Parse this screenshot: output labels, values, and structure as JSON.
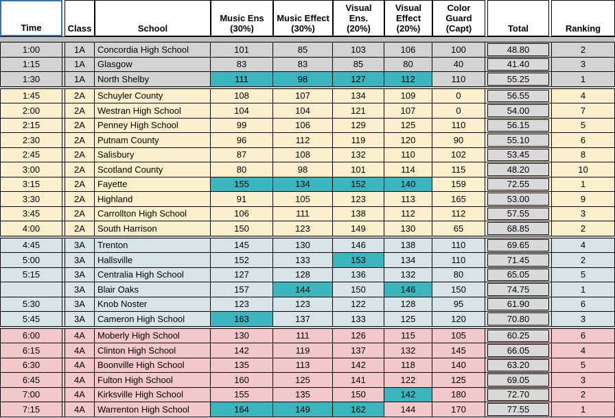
{
  "table": {
    "columns": {
      "time": {
        "label": "Time"
      },
      "class": {
        "label": "Class"
      },
      "school": {
        "label": "School"
      },
      "music_ens": {
        "label": "Music Ens\n(30%)"
      },
      "music_effect": {
        "label": "Music Effect\n(30%)"
      },
      "visual_ens": {
        "label": "Visual\nEns.\n(20%)"
      },
      "visual_effect": {
        "label": "Visual\nEffect\n(20%)"
      },
      "color_guard": {
        "label": "Color\nGuard\n(Capt)"
      },
      "total": {
        "label": "Total"
      },
      "ranking": {
        "label": "Ranking"
      }
    },
    "colors": {
      "highlight_teal": "#3BB6BE",
      "total_fill": "#D9D9D9",
      "header_strip_gray": "#BFBFBF",
      "selected_cell_border_blue": "#2E75B6",
      "grid_black": "#000000"
    },
    "groups": [
      {
        "class": "1A",
        "row_color": "#D3D3D3",
        "rows": [
          {
            "time": "1:00",
            "class": "1A",
            "school": "Concordia High School",
            "music_ens": "101",
            "music_effect": "85",
            "visual_ens": "103",
            "visual_effect": "106",
            "color_guard": "100",
            "total": "48.80",
            "ranking": "2",
            "highlight": []
          },
          {
            "time": "1:15",
            "class": "1A",
            "school": "Glasgow",
            "music_ens": "83",
            "music_effect": "83",
            "visual_ens": "85",
            "visual_effect": "80",
            "color_guard": "40",
            "total": "41.40",
            "ranking": "3",
            "highlight": []
          },
          {
            "time": "1:30",
            "class": "1A",
            "school": "North Shelby",
            "music_ens": "111",
            "music_effect": "98",
            "visual_ens": "127",
            "visual_effect": "112",
            "color_guard": "110",
            "total": "55.25",
            "ranking": "1",
            "highlight": [
              "music_ens",
              "music_effect",
              "visual_ens",
              "visual_effect"
            ]
          }
        ]
      },
      {
        "class": "2A",
        "row_color": "#FBF0CB",
        "rows": [
          {
            "time": "1:45",
            "class": "2A",
            "school": "Schuyler County",
            "music_ens": "108",
            "music_effect": "107",
            "visual_ens": "134",
            "visual_effect": "109",
            "color_guard": "0",
            "total": "56.55",
            "ranking": "4",
            "highlight": []
          },
          {
            "time": "2:00",
            "class": "2A",
            "school": "Westran High School",
            "music_ens": "104",
            "music_effect": "104",
            "visual_ens": "121",
            "visual_effect": "107",
            "color_guard": "0",
            "total": "54.00",
            "ranking": "7",
            "highlight": []
          },
          {
            "time": "2:15",
            "class": "2A",
            "school": "Penney High School",
            "music_ens": "99",
            "music_effect": "106",
            "visual_ens": "129",
            "visual_effect": "125",
            "color_guard": "110",
            "total": "56.15",
            "ranking": "5",
            "highlight": []
          },
          {
            "time": "2:30",
            "class": "2A",
            "school": "Putnam County",
            "music_ens": "96",
            "music_effect": "112",
            "visual_ens": "119",
            "visual_effect": "120",
            "color_guard": "90",
            "total": "55.10",
            "ranking": "6",
            "highlight": []
          },
          {
            "time": "2:45",
            "class": "2A",
            "school": "Salisbury",
            "music_ens": "87",
            "music_effect": "108",
            "visual_ens": "132",
            "visual_effect": "110",
            "color_guard": "102",
            "total": "53.45",
            "ranking": "8",
            "highlight": []
          },
          {
            "time": "3:00",
            "class": "2A",
            "school": "Scotland County",
            "music_ens": "80",
            "music_effect": "98",
            "visual_ens": "101",
            "visual_effect": "114",
            "color_guard": "115",
            "total": "48.20",
            "ranking": "10",
            "highlight": []
          },
          {
            "time": "3:15",
            "class": "2A",
            "school": "Fayette",
            "music_ens": "155",
            "music_effect": "134",
            "visual_ens": "152",
            "visual_effect": "140",
            "color_guard": "159",
            "total": "72.55",
            "ranking": "1",
            "highlight": [
              "music_ens",
              "music_effect",
              "visual_ens",
              "visual_effect"
            ]
          },
          {
            "time": "3:30",
            "class": "2A",
            "school": "Highland",
            "music_ens": "91",
            "music_effect": "105",
            "visual_ens": "123",
            "visual_effect": "113",
            "color_guard": "165",
            "total": "53.00",
            "ranking": "9",
            "highlight": []
          },
          {
            "time": "3:45",
            "class": "2A",
            "school": "Carrollton High School",
            "music_ens": "106",
            "music_effect": "111",
            "visual_ens": "138",
            "visual_effect": "112",
            "color_guard": "112",
            "total": "57.55",
            "ranking": "3",
            "highlight": []
          },
          {
            "time": "4:00",
            "class": "2A",
            "school": "South Harrison",
            "music_ens": "150",
            "music_effect": "123",
            "visual_ens": "149",
            "visual_effect": "130",
            "color_guard": "65",
            "total": "68.85",
            "ranking": "2",
            "highlight": []
          }
        ]
      },
      {
        "class": "3A",
        "row_color": "#D7E4E8",
        "rows": [
          {
            "time": "4:45",
            "class": "3A",
            "school": "Trenton",
            "music_ens": "145",
            "music_effect": "130",
            "visual_ens": "146",
            "visual_effect": "138",
            "color_guard": "110",
            "total": "69.65",
            "ranking": "4",
            "highlight": []
          },
          {
            "time": "5:00",
            "class": "3A",
            "school": "Hallsville",
            "music_ens": "152",
            "music_effect": "133",
            "visual_ens": "153",
            "visual_effect": "134",
            "color_guard": "110",
            "total": "71.45",
            "ranking": "2",
            "highlight": [
              "visual_ens"
            ]
          },
          {
            "time": "5:15",
            "class": "3A",
            "school": "Centralia High School",
            "music_ens": "127",
            "music_effect": "128",
            "visual_ens": "136",
            "visual_effect": "132",
            "color_guard": "80",
            "total": "65.05",
            "ranking": "5",
            "highlight": []
          },
          {
            "time": "",
            "class": "3A",
            "school": "Blair Oaks",
            "music_ens": "157",
            "music_effect": "144",
            "visual_ens": "150",
            "visual_effect": "146",
            "color_guard": "150",
            "total": "74.75",
            "ranking": "1",
            "highlight": [
              "music_effect",
              "visual_effect"
            ]
          },
          {
            "time": "5:30",
            "class": "3A",
            "school": "Knob Noster",
            "music_ens": "123",
            "music_effect": "123",
            "visual_ens": "122",
            "visual_effect": "128",
            "color_guard": "95",
            "total": "61.90",
            "ranking": "6",
            "highlight": []
          },
          {
            "time": "5:45",
            "class": "3A",
            "school": "Cameron High School",
            "music_ens": "163",
            "music_effect": "137",
            "visual_ens": "133",
            "visual_effect": "125",
            "color_guard": "120",
            "total": "70.80",
            "ranking": "3",
            "highlight": [
              "music_ens"
            ]
          }
        ]
      },
      {
        "class": "4A",
        "row_color": "#F4C7C9",
        "rows": [
          {
            "time": "6:00",
            "class": "4A",
            "school": "Moberly High School",
            "music_ens": "130",
            "music_effect": "111",
            "visual_ens": "126",
            "visual_effect": "115",
            "color_guard": "105",
            "total": "60.25",
            "ranking": "6",
            "highlight": []
          },
          {
            "time": "6:15",
            "class": "4A",
            "school": "Clinton High School",
            "music_ens": "142",
            "music_effect": "119",
            "visual_ens": "137",
            "visual_effect": "132",
            "color_guard": "145",
            "total": "66.05",
            "ranking": "4",
            "highlight": []
          },
          {
            "time": "6:30",
            "class": "4A",
            "school": "Boonville High School",
            "music_ens": "135",
            "music_effect": "113",
            "visual_ens": "142",
            "visual_effect": "118",
            "color_guard": "140",
            "total": "63.20",
            "ranking": "5",
            "highlight": []
          },
          {
            "time": "6:45",
            "class": "4A",
            "school": "Fulton High School",
            "music_ens": "160",
            "music_effect": "125",
            "visual_ens": "141",
            "visual_effect": "122",
            "color_guard": "125",
            "total": "69.05",
            "ranking": "3",
            "highlight": []
          },
          {
            "time": "7:00",
            "class": "4A",
            "school": "Kirksville High School",
            "music_ens": "155",
            "music_effect": "135",
            "visual_ens": "150",
            "visual_effect": "142",
            "color_guard": "180",
            "total": "72.70",
            "ranking": "2",
            "highlight": [
              "visual_effect"
            ]
          },
          {
            "time": "7:15",
            "class": "4A",
            "school": "Warrenton High School",
            "music_ens": "164",
            "music_effect": "149",
            "visual_ens": "162",
            "visual_effect": "144",
            "color_guard": "170",
            "total": "77.55",
            "ranking": "1",
            "highlight": [
              "music_ens",
              "music_effect",
              "visual_ens"
            ]
          }
        ]
      }
    ]
  }
}
